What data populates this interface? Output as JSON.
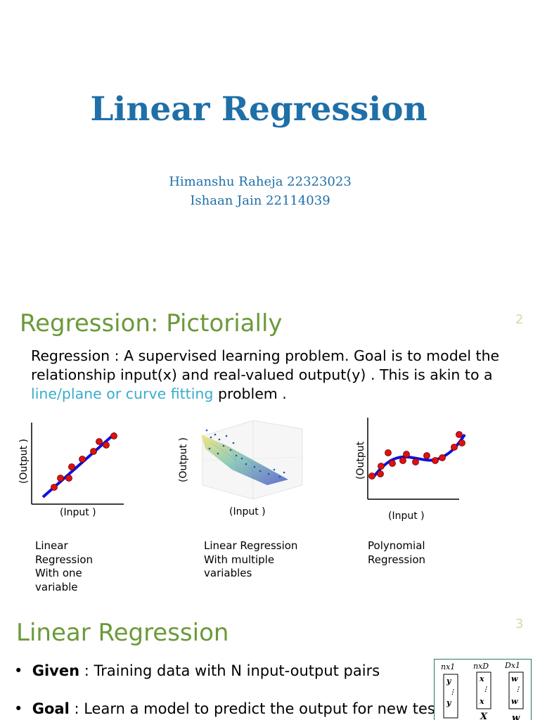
{
  "slide1": {
    "title": "Linear Regression",
    "authors": [
      "Himanshu Raheja 22323023",
      "Ishaan Jain  22114039"
    ]
  },
  "slide2": {
    "heading": "Regression: Pictorially",
    "number": "2",
    "body_before": "Regression : A supervised learning problem. Goal is to model the relationship input(x) and real-valued output(y) . This is akin to a ",
    "body_highlight": "line/plane or curve fitting",
    "body_after": " problem .",
    "highlight_color": "#3aaccc",
    "figures": [
      {
        "ylabel": "(Output )",
        "xlabel": "(Input )",
        "caption": "Linear Regression With one variable"
      },
      {
        "ylabel": "(Output )",
        "xlabel": "(Input )",
        "caption": "Linear Regression With multiple variables"
      },
      {
        "ylabel": "(Output",
        "xlabel": "(Input )",
        "caption": "Polynomial Regression"
      }
    ]
  },
  "slide3": {
    "heading": "Linear Regression",
    "number": "3",
    "bullets": [
      {
        "bold": "Given",
        "text": " : Training data with N input-output pairs"
      },
      {
        "bold": "Goal",
        "text": " : Learn a model to predict the output for new test"
      }
    ],
    "matrix_labels": [
      "nx1",
      "nxD",
      "Dx1"
    ]
  },
  "colors": {
    "title": "#1f6fa8",
    "heading": "#6a9a3a",
    "slide_number": "#c8deb0",
    "points": "#e01010",
    "fit_line": "#1010e0"
  }
}
